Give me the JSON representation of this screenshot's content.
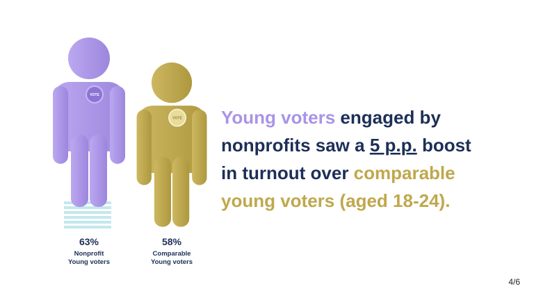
{
  "figures": [
    {
      "value_label": "63%",
      "label_lines": [
        "Nonprofit",
        "Young voters"
      ],
      "badge": "VOTE",
      "color": "#a994e6"
    },
    {
      "value_label": "58%",
      "label_lines": [
        "Comparable",
        "Young voters"
      ],
      "badge": "VOTE",
      "color": "#bfa84d"
    }
  ],
  "headline": {
    "lines": [
      [
        {
          "text": "Young voters",
          "color": "#a994e6"
        },
        {
          "text": " engaged by",
          "color": "#1d2f57"
        }
      ],
      [
        {
          "text": "nonprofits saw a ",
          "color": "#1d2f57"
        },
        {
          "text": "5 p.p.",
          "color": "#1d2f57",
          "underline": true
        },
        {
          "text": " boost",
          "color": "#1d2f57"
        }
      ],
      [
        {
          "text": "in turnout over ",
          "color": "#1d2f57"
        },
        {
          "text": "comparable",
          "color": "#bfa84d"
        }
      ],
      [
        {
          "text": "young voters (aged 18-24).",
          "color": "#bfa84d"
        }
      ]
    ]
  },
  "page_number": "4/6"
}
